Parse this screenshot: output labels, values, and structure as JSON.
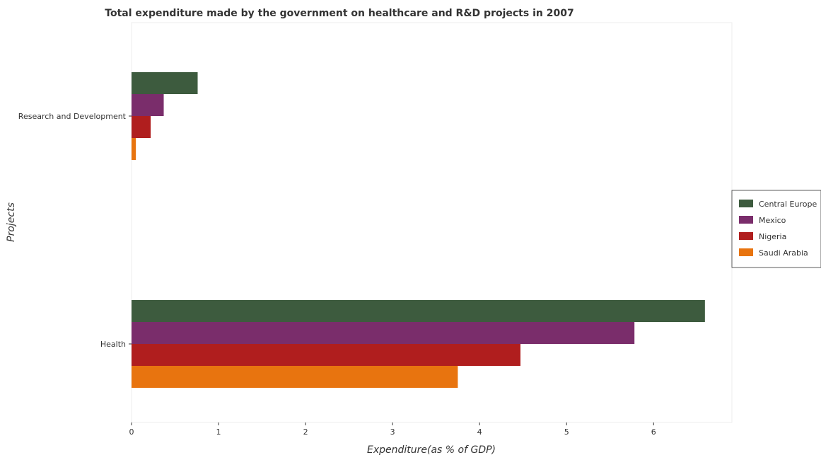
{
  "chart_data": {
    "type": "bar",
    "orientation": "horizontal",
    "title": "Total expenditure made by the government on healthcare and R&D projects in 2007",
    "xlabel": "Expenditure(as % of GDP)",
    "ylabel": "Projects",
    "categories": [
      "Health",
      "Research and Development"
    ],
    "xlim": [
      0,
      6.9
    ],
    "xticks": [
      0,
      1,
      2,
      3,
      4,
      5,
      6
    ],
    "grid": false,
    "legend_position": "right",
    "series": [
      {
        "name": "Central Europe",
        "color": "#3d5b3e",
        "values": [
          6.59,
          0.76
        ]
      },
      {
        "name": "Mexico",
        "color": "#7a2d6b",
        "values": [
          5.78,
          0.37
        ]
      },
      {
        "name": "Nigeria",
        "color": "#b01e1e",
        "values": [
          4.47,
          0.22
        ]
      },
      {
        "name": "Saudi Arabia",
        "color": "#e8740f",
        "values": [
          3.75,
          0.05
        ]
      }
    ]
  }
}
